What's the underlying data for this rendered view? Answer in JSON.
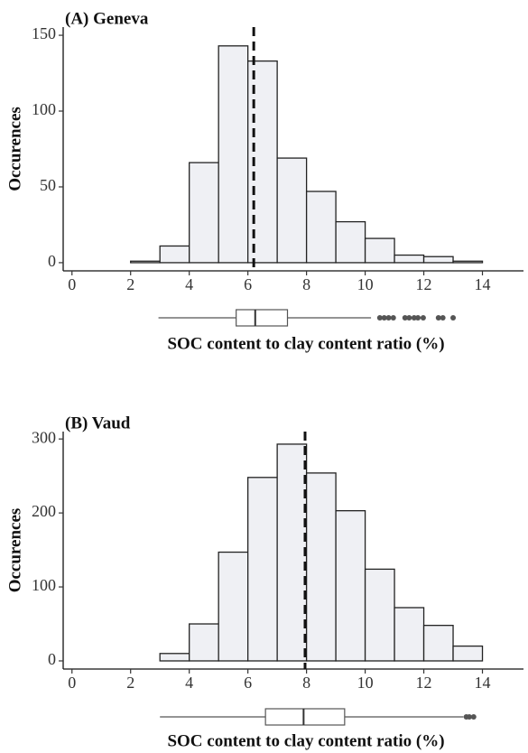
{
  "chart_data": [
    {
      "type": "histogram",
      "title": "(A) Geneva",
      "x_label": "SOC content to clay content ratio (%)",
      "y_label": "Occurences",
      "bins": [
        1,
        2,
        3,
        4,
        5,
        6,
        7,
        8,
        9,
        10,
        11,
        12,
        13,
        14,
        15
      ],
      "values": [
        0,
        1,
        11,
        66,
        143,
        133,
        69,
        47,
        27,
        16,
        5,
        4,
        1,
        0
      ],
      "color": "#eff0f4",
      "xlim": [
        -0.3,
        15.4
      ],
      "xticks": [
        0,
        2,
        4,
        6,
        8,
        10,
        12,
        14
      ],
      "ylim": [
        -5.4,
        155.4
      ],
      "yticks": [
        0,
        50,
        100,
        150
      ],
      "mean_line": 6.2,
      "boxplot": {
        "whisker_low": 2.95,
        "q1": 5.6,
        "median": 6.25,
        "q3": 7.35,
        "whisker_high": 10.2,
        "outliers": [
          10.5,
          10.65,
          10.8,
          10.96,
          11.36,
          11.5,
          11.67,
          11.8,
          11.98,
          12.5,
          12.65,
          13.0
        ]
      }
    },
    {
      "type": "histogram",
      "title": "(B) Vaud",
      "x_label": "SOC content to clay content ratio (%)",
      "y_label": "Occurences",
      "bins": [
        1,
        2,
        3,
        4,
        5,
        6,
        7,
        8,
        9,
        10,
        11,
        12,
        13,
        14,
        15
      ],
      "values": [
        0,
        0,
        10,
        50,
        147,
        248,
        293,
        254,
        203,
        124,
        72,
        48,
        20,
        0
      ],
      "color": "#eff0f4",
      "xlim": [
        -0.3,
        15.4
      ],
      "xticks": [
        0,
        2,
        4,
        6,
        8,
        10,
        12,
        14
      ],
      "ylim": [
        -11,
        310
      ],
      "yticks": [
        0,
        100,
        200,
        300
      ],
      "mean_line": 7.95,
      "boxplot": {
        "whisker_low": 3.0,
        "q1": 6.6,
        "median": 7.9,
        "q3": 9.3,
        "whisker_high": 13.35,
        "outliers": [
          13.45,
          13.55,
          13.7
        ]
      }
    }
  ]
}
